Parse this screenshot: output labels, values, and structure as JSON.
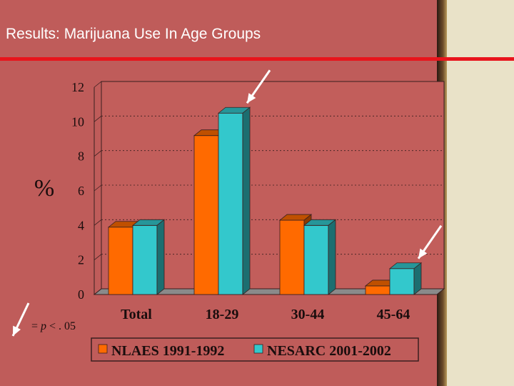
{
  "slide": {
    "title": "Results:  Marijuana Use In Age Groups",
    "y_unit_label": "%",
    "significance_note_prefix": "= ",
    "significance_note_p": "p",
    "significance_note_suffix": " < . 05"
  },
  "colors": {
    "background": "#bf5c5a",
    "title_rule": "#e8141c",
    "series_1": "#ff6a00",
    "series_2": "#33c8cc"
  },
  "chart_data": {
    "type": "bar",
    "categories": [
      "Total",
      "18-29",
      "30-44",
      "45-64"
    ],
    "series": [
      {
        "name": "NLAES 1991-1992",
        "values": [
          3.9,
          9.2,
          4.3,
          0.5
        ]
      },
      {
        "name": "NESARC 2001-2002",
        "values": [
          4.0,
          10.5,
          4.0,
          1.5
        ]
      }
    ],
    "ylabel": "%",
    "ylim": [
      0,
      12
    ],
    "yticks": [
      0,
      2,
      4,
      6,
      8,
      10,
      12
    ],
    "legend": "bottom",
    "significant_categories": [
      "18-29",
      "45-64"
    ]
  }
}
